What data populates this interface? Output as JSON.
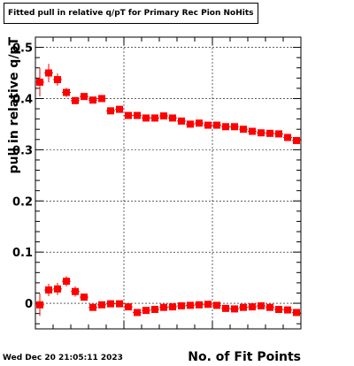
{
  "title": "Fitted pull in relative q/pT for Primary Rec Pion NoHits",
  "timestamp": "Wed Dec 20 21:05:11 2023",
  "chart_data": {
    "type": "scatter",
    "title": "Fitted pull in relative q/pT for Primary Rec Pion NoHits",
    "xlabel": "No. of Fit Points",
    "ylabel": "pull in relative q/pT",
    "xlim": [
      0,
      30
    ],
    "ylim": [
      -0.05,
      0.52
    ],
    "yticks": [
      0,
      0.1,
      0.2,
      0.3,
      0.4,
      0.5
    ],
    "ytick_labels": [
      "0",
      "0.1",
      "0.2",
      "0.3",
      "0.4",
      "0.5"
    ],
    "grid": true,
    "marker_color": "#ff0000",
    "series": [
      {
        "x": [
          0.5,
          1.5,
          2.5,
          3.5,
          4.5,
          5.5,
          6.5,
          7.5,
          8.5,
          9.5,
          10.5,
          11.5,
          12.5,
          13.5,
          14.5,
          15.5,
          16.5,
          17.5,
          18.5,
          19.5,
          20.5,
          21.5,
          22.5,
          23.5,
          24.5,
          25.5,
          26.5,
          27.5,
          28.5,
          29.5
        ],
        "y": [
          0.432,
          0.45,
          0.437,
          0.412,
          0.396,
          0.404,
          0.397,
          0.4,
          0.376,
          0.379,
          0.367,
          0.367,
          0.362,
          0.362,
          0.366,
          0.362,
          0.356,
          0.35,
          0.352,
          0.348,
          0.348,
          0.345,
          0.345,
          0.34,
          0.336,
          0.333,
          0.332,
          0.331,
          0.324,
          0.318
        ],
        "yerr": [
          0.028,
          0.018,
          0.012,
          0.009,
          0.007,
          0.006,
          0.006,
          0.005,
          0.005,
          0.004,
          0.004,
          0.004,
          0.004,
          0.004,
          0.004,
          0.004,
          0.004,
          0.004,
          0.004,
          0.004,
          0.004,
          0.004,
          0.004,
          0.004,
          0.004,
          0.004,
          0.004,
          0.004,
          0.004,
          0.004
        ]
      },
      {
        "x": [
          0.5,
          1.5,
          2.5,
          3.5,
          4.5,
          5.5,
          6.5,
          7.5,
          8.5,
          9.5,
          10.5,
          11.5,
          12.5,
          13.5,
          14.5,
          15.5,
          16.5,
          17.5,
          18.5,
          19.5,
          20.5,
          21.5,
          22.5,
          23.5,
          24.5,
          25.5,
          26.5,
          27.5,
          28.5,
          29.5
        ],
        "y": [
          -0.003,
          0.026,
          0.028,
          0.043,
          0.023,
          0.012,
          -0.008,
          -0.003,
          -0.001,
          -0.001,
          -0.007,
          -0.018,
          -0.014,
          -0.012,
          -0.008,
          -0.007,
          -0.005,
          -0.004,
          -0.003,
          -0.002,
          -0.004,
          -0.01,
          -0.011,
          -0.008,
          -0.007,
          -0.005,
          -0.008,
          -0.012,
          -0.013,
          -0.018
        ],
        "yerr": [
          0.022,
          0.012,
          0.012,
          0.01,
          0.01,
          0.007,
          0.006,
          0.005,
          0.005,
          0.005,
          0.005,
          0.005,
          0.004,
          0.004,
          0.004,
          0.004,
          0.004,
          0.004,
          0.004,
          0.004,
          0.004,
          0.004,
          0.004,
          0.004,
          0.004,
          0.004,
          0.004,
          0.004,
          0.004,
          0.004
        ]
      }
    ]
  }
}
